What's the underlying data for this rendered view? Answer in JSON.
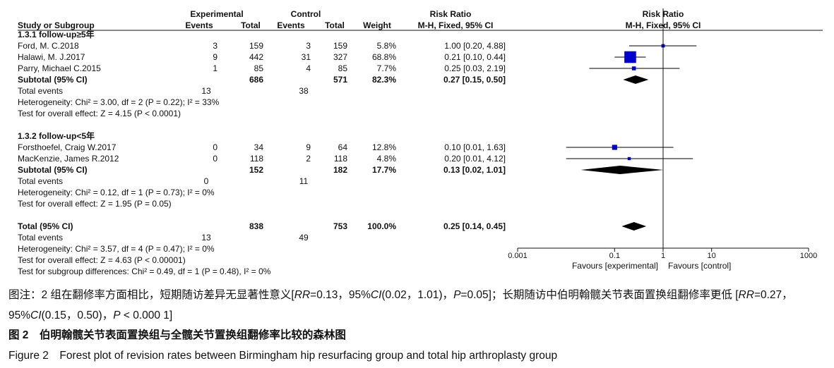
{
  "forest": {
    "header": {
      "group1": "Experimental",
      "group2": "Control",
      "study": "Study or Subgroup",
      "events1": "Events",
      "total1": "Total",
      "events2": "Events",
      "total2": "Total",
      "weight": "Weight",
      "rr": "Risk Ratio",
      "rr_method": "M-H, Fixed, 95% CI",
      "plot_title": "Risk Ratio",
      "plot_method": "M-H, Fixed, 95% CI"
    },
    "subgroups": [
      {
        "title": "1.3.1 follow-up≥5年",
        "studies": [
          {
            "name": "Ford, M. C.2018",
            "events1": 3,
            "total1": 159,
            "events2": 3,
            "total2": 159,
            "weight": 5.8,
            "weight_label": "5.8%",
            "rr": 1.0,
            "lo": 0.2,
            "hi": 4.88,
            "ci_label": "1.00 [0.20, 4.88]"
          },
          {
            "name": "Halawi, M. J.2017",
            "events1": 9,
            "total1": 442,
            "events2": 31,
            "total2": 327,
            "weight": 68.8,
            "weight_label": "68.8%",
            "rr": 0.21,
            "lo": 0.1,
            "hi": 0.44,
            "ci_label": "0.21 [0.10, 0.44]"
          },
          {
            "name": "Parry, Michael C.2015",
            "events1": 1,
            "total1": 85,
            "events2": 4,
            "total2": 85,
            "weight": 7.7,
            "weight_label": "7.7%",
            "rr": 0.25,
            "lo": 0.03,
            "hi": 2.19,
            "ci_label": "0.25 [0.03, 2.19]"
          }
        ],
        "subtotal": {
          "label": "Subtotal (95% CI)",
          "total1": 686,
          "total2": 571,
          "weight": "82.3%",
          "rr": 0.27,
          "lo": 0.15,
          "hi": 0.5,
          "ci_label": "0.27 [0.15, 0.50]"
        },
        "events_label": "Total events",
        "events1": 13,
        "events2": 38,
        "heterogeneity": "Heterogeneity: Chi² = 3.00, df = 2 (P = 0.22); I² = 33%",
        "overall": "Test for overall effect: Z = 4.15 (P < 0.0001)"
      },
      {
        "title": "1.3.2 follow-up<5年",
        "studies": [
          {
            "name": "Forsthoefel, Craig W.2017",
            "events1": 0,
            "total1": 34,
            "events2": 9,
            "total2": 64,
            "weight": 12.8,
            "weight_label": "12.8%",
            "rr": 0.1,
            "lo": 0.01,
            "hi": 1.63,
            "ci_label": "0.10 [0.01, 1.63]"
          },
          {
            "name": "MacKenzie, James R.2012",
            "events1": 0,
            "total1": 118,
            "events2": 2,
            "total2": 118,
            "weight": 4.8,
            "weight_label": "4.8%",
            "rr": 0.2,
            "lo": 0.01,
            "hi": 4.12,
            "ci_label": "0.20 [0.01, 4.12]"
          }
        ],
        "subtotal": {
          "label": "Subtotal (95% CI)",
          "total1": 152,
          "total2": 182,
          "weight": "17.7%",
          "rr": 0.13,
          "lo": 0.02,
          "hi": 1.01,
          "ci_label": "0.13 [0.02, 1.01]"
        },
        "events_label": "Total events",
        "events1": 0,
        "events2": 11,
        "heterogeneity": "Heterogeneity: Chi² = 0.12, df = 1 (P = 0.73); I² = 0%",
        "overall": "Test for overall effect: Z = 1.95 (P = 0.05)"
      }
    ],
    "total": {
      "label": "Total (95% CI)",
      "total1": 838,
      "total2": 753,
      "weight": "100.0%",
      "rr": 0.25,
      "lo": 0.14,
      "hi": 0.45,
      "ci_label": "0.25 [0.14, 0.45]",
      "events_label": "Total events",
      "events1": 13,
      "events2": 49,
      "heterogeneity": "Heterogeneity: Chi² = 3.57, df = 4 (P = 0.47); I² = 0%",
      "overall": "Test for overall effect: Z = 4.63 (P < 0.00001)",
      "subgroup_diff": "Test for subgroup differences: Chi² = 0.49, df = 1 (P = 0.48), I² = 0%"
    },
    "axis": {
      "log": true,
      "xlim": [
        0.001,
        1000
      ],
      "xticks": [
        0.001,
        0.1,
        1,
        10,
        1000
      ],
      "ref": 1,
      "left_label": "Favours [experimental]",
      "right_label": "Favours [control]"
    },
    "colors": {
      "marker": "#0000c8",
      "diamond": "#000000",
      "ci": "#000000"
    }
  },
  "caption": {
    "note": [
      {
        "text": "图注：2 组在翻修率方面相比，短期随访差异无显著性意义[",
        "italic": false
      },
      {
        "text": "RR",
        "italic": true
      },
      {
        "text": "=0.13，95%",
        "italic": false
      },
      {
        "text": "CI",
        "italic": true
      },
      {
        "text": "(0.02，1.01)，",
        "italic": false
      },
      {
        "text": "P",
        "italic": true
      },
      {
        "text": "=0.05]；长期随访中伯明翰髋关节表面置换组翻修率更低 [",
        "italic": false
      },
      {
        "text": "RR",
        "italic": true
      },
      {
        "text": "=0.27，95%",
        "italic": false
      },
      {
        "text": "CI",
        "italic": true
      },
      {
        "text": "(0.15，0.50)，",
        "italic": false
      },
      {
        "text": "P",
        "italic": true
      },
      {
        "text": " < 0.000 1]",
        "italic": false
      }
    ],
    "title_cn": "图 2　伯明翰髋关节表面置换组与全髋关节置换组翻修率比较的森林图",
    "title_en": "Figure 2　Forest plot of revision rates between Birmingham hip resurfacing group and total hip arthroplasty group"
  }
}
